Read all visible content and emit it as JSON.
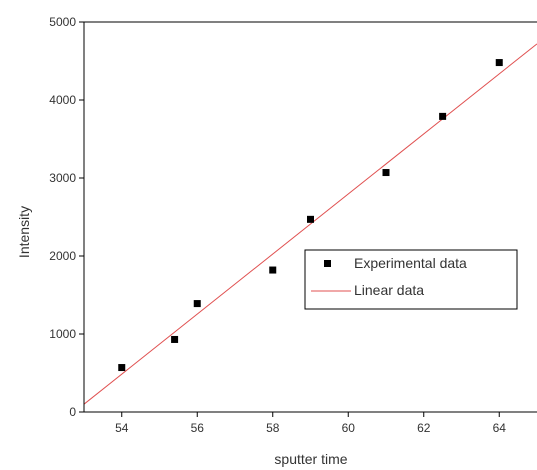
{
  "chart_data": {
    "type": "scatter",
    "title": "",
    "xlabel": "sputter time",
    "ylabel": "Intensity",
    "xlim": [
      53,
      65
    ],
    "ylim": [
      0,
      5000
    ],
    "x_ticks": [
      54,
      56,
      58,
      60,
      62,
      64
    ],
    "y_ticks": [
      0,
      1000,
      2000,
      3000,
      4000,
      5000
    ],
    "grid": false,
    "legend_position": "center-right",
    "series": [
      {
        "name": "Experimental data",
        "kind": "scatter",
        "marker": "square",
        "color": "#000000",
        "points": [
          {
            "x": 54,
            "y": 570
          },
          {
            "x": 55.4,
            "y": 930
          },
          {
            "x": 56,
            "y": 1390
          },
          {
            "x": 58,
            "y": 1820
          },
          {
            "x": 59,
            "y": 2470
          },
          {
            "x": 61,
            "y": 3070
          },
          {
            "x": 62.5,
            "y": 3790
          },
          {
            "x": 64,
            "y": 4480
          }
        ]
      },
      {
        "name": "Linear data",
        "kind": "line",
        "color": "#e05050",
        "points": [
          {
            "x": 53,
            "y": 100
          },
          {
            "x": 65,
            "y": 4720
          }
        ]
      }
    ]
  }
}
